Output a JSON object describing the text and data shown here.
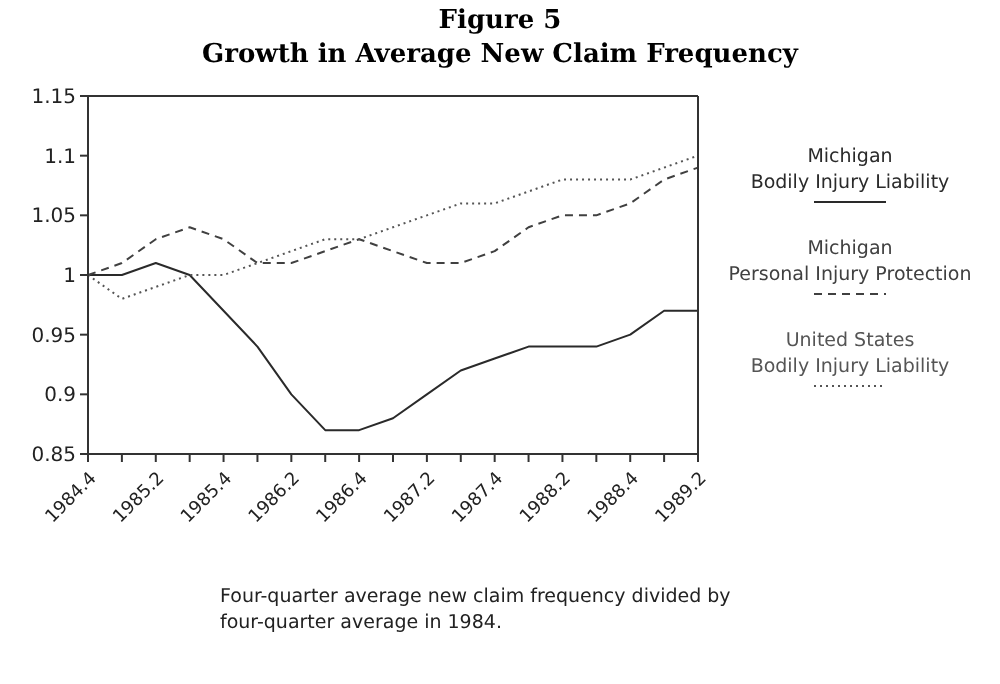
{
  "chart_data": {
    "type": "line",
    "title": "Figure 5",
    "subtitle": "Growth in Average New Claim Frequency",
    "categories": [
      "1984.4",
      null,
      "1985.2",
      null,
      "1985.4",
      null,
      "1986.2",
      null,
      "1986.4",
      null,
      "1987.2",
      null,
      "1987.4",
      null,
      "1988.2",
      null,
      "1988.4",
      null,
      "1989.2"
    ],
    "series": [
      {
        "name": "Michigan\nBodily Injury Liability",
        "color": "#2a2a2a",
        "line_style": "solid",
        "values": [
          1,
          1,
          1.01,
          1,
          0.97,
          0.94,
          0.9,
          0.87,
          0.87,
          0.88,
          0.9,
          0.92,
          0.93,
          0.94,
          0.94,
          0.94,
          0.95,
          0.97,
          0.97
        ]
      },
      {
        "name": "Michigan\nPersonal Injury Protection",
        "color": "#404040",
        "line_style": "dashed",
        "values": [
          1,
          1.01,
          1.03,
          1.04,
          1.03,
          1.01,
          1.01,
          1.02,
          1.03,
          1.02,
          1.01,
          1.01,
          1.02,
          1.04,
          1.05,
          1.05,
          1.06,
          1.08,
          1.09
        ]
      },
      {
        "name": "United States\nBodily Injury Liability",
        "color": "#555555",
        "line_style": "dotted",
        "values": [
          1,
          0.98,
          0.99,
          1,
          1,
          1.01,
          1.02,
          1.03,
          1.03,
          1.04,
          1.05,
          1.06,
          1.06,
          1.07,
          1.08,
          1.08,
          1.08,
          1.09,
          1.1
        ]
      }
    ],
    "ylim": [
      0.85,
      1.15
    ],
    "yticks": [
      0.85,
      0.9,
      0.95,
      1,
      1.05,
      1.1,
      1.15
    ],
    "legend": "right",
    "marker": "none",
    "annotations": [
      "Four-quarter average new claim frequency divided by four-quarter average in 1984."
    ]
  }
}
